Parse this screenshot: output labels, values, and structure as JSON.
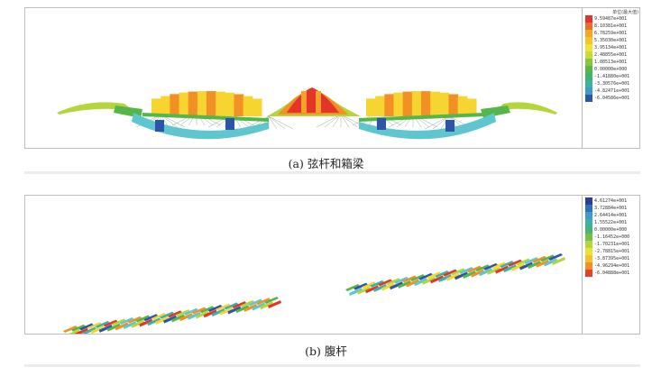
{
  "figure_a": {
    "caption": "(a) 弦杆和箱梁",
    "legend": {
      "title": "单位(最大值)",
      "items": [
        {
          "label": "9.59487e+001",
          "color": "#e53529"
        },
        {
          "label": "8.10381e+001",
          "color": "#ef6a28"
        },
        {
          "label": "6.78259e+001",
          "color": "#f5a623"
        },
        {
          "label": "5.35030e+001",
          "color": "#f7c325"
        },
        {
          "label": "3.95134e+001",
          "color": "#f2e436"
        },
        {
          "label": "2.48855e+001",
          "color": "#c6dd3a"
        },
        {
          "label": "1.08513e+001",
          "color": "#86c73f"
        },
        {
          "label": "0.00000e+000",
          "color": "#55b748"
        },
        {
          "label": "-1.41880e+001",
          "color": "#3db56a"
        },
        {
          "label": "-3.30576e+001",
          "color": "#3ab3a0"
        },
        {
          "label": "-4.82471e+001",
          "color": "#3d98cc"
        },
        {
          "label": "-6.04586e+001",
          "color": "#2c55a8"
        }
      ]
    }
  },
  "figure_b": {
    "caption": "(b) 腹杆",
    "legend": {
      "title": "",
      "items": [
        {
          "label": "4.61274e+001",
          "color": "#2b3f9a"
        },
        {
          "label": "3.72884e+001",
          "color": "#2f6fbc"
        },
        {
          "label": "2.64414e+001",
          "color": "#3e9ad0"
        },
        {
          "label": "1.55522e+001",
          "color": "#3ab3a6"
        },
        {
          "label": "0.00000e+000",
          "color": "#45b774"
        },
        {
          "label": "-1.16452e+000",
          "color": "#73c149"
        },
        {
          "label": "-1.70231e+001",
          "color": "#b4d63c"
        },
        {
          "label": "-2.78815e+001",
          "color": "#eae337"
        },
        {
          "label": "-3.87395e+001",
          "color": "#f6c128"
        },
        {
          "label": "-4.96294e+001",
          "color": "#f28f25"
        },
        {
          "label": "-6.04888e+001",
          "color": "#e5412a"
        }
      ]
    }
  },
  "colors": {
    "red": "#e53529",
    "orange": "#f28f25",
    "yellow": "#f7d531",
    "lime": "#b4d63c",
    "green": "#55b748",
    "cyan": "#5fc6d0",
    "blue": "#2c55a8",
    "teal": "#3ab3a6"
  }
}
